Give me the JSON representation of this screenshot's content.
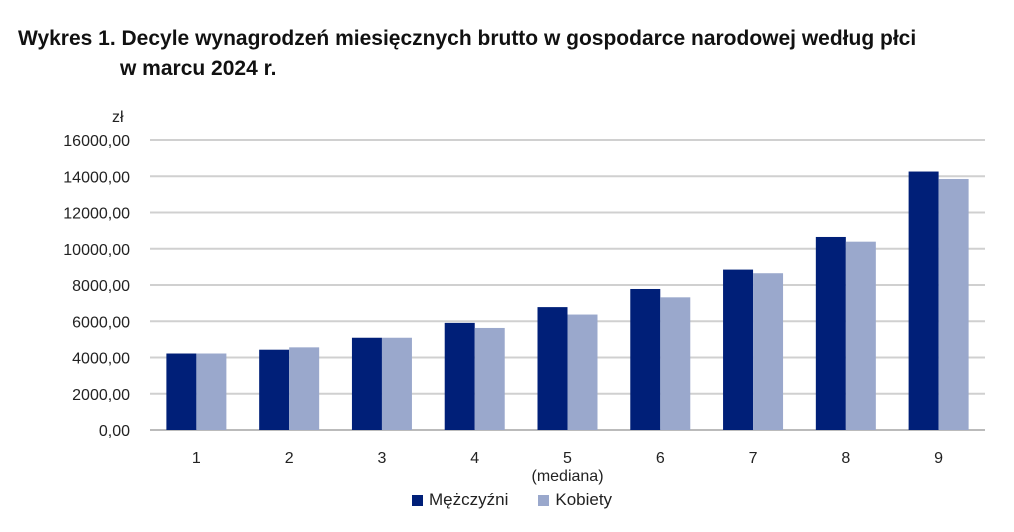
{
  "chart_data": {
    "type": "bar",
    "title_line1": "Wykres 1. Decyle wynagrodzeń miesięcznych brutto w gospodarce narodowej według płci",
    "title_line2": "w marcu 2024 r.",
    "ylabel": "zł",
    "xlabel": "",
    "ylim": [
      0,
      16000
    ],
    "yticks": [
      0,
      2000,
      4000,
      6000,
      8000,
      10000,
      12000,
      14000,
      16000
    ],
    "ytick_labels": [
      "0,00",
      "2000,00",
      "4000,00",
      "6000,00",
      "8000,00",
      "10000,00",
      "12000,00",
      "14000,00",
      "16000,00"
    ],
    "categories": [
      "1",
      "2",
      "3",
      "4",
      "5",
      "6",
      "7",
      "8",
      "9"
    ],
    "median_note": "(mediana)",
    "grid": true,
    "legend_position": "bottom",
    "series": [
      {
        "name": "Mężczyźni",
        "color": "#001f78",
        "values": [
          4220,
          4430,
          5090,
          5910,
          6780,
          7780,
          8850,
          10650,
          14260
        ]
      },
      {
        "name": "Kobiety",
        "color": "#9aa8cc",
        "values": [
          4220,
          4560,
          5090,
          5630,
          6370,
          7320,
          8650,
          10390,
          13850
        ]
      }
    ]
  }
}
